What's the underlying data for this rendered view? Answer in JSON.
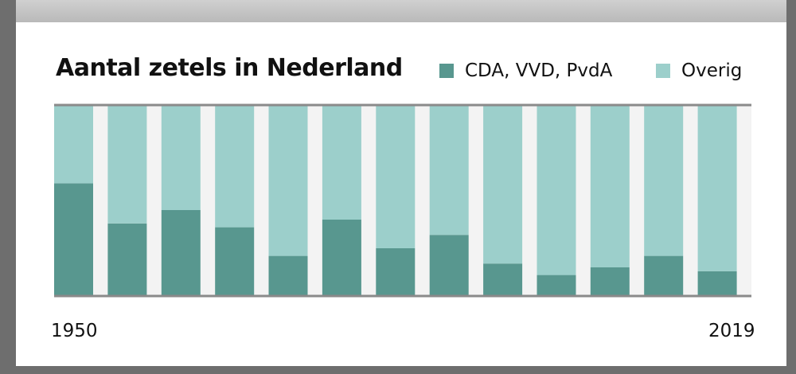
{
  "chart_data": {
    "type": "bar",
    "stacked": true,
    "normalized": true,
    "title": "Aantal zetels in Nederland",
    "x_start_label": "1950",
    "x_end_label": "2019",
    "series": [
      {
        "name": "CDA, VVD, PvdA",
        "color": "#58978f",
        "values": [
          0.59,
          0.38,
          0.45,
          0.36,
          0.21,
          0.4,
          0.25,
          0.32,
          0.17,
          0.11,
          0.15,
          0.21,
          0.13
        ]
      },
      {
        "name": "Overig",
        "color": "#9ccfcb",
        "values": [
          0.41,
          0.62,
          0.55,
          0.64,
          0.79,
          0.6,
          0.75,
          0.68,
          0.83,
          0.89,
          0.85,
          0.79,
          0.87
        ]
      }
    ],
    "ylim": [
      0,
      1
    ],
    "grid": false,
    "legend_position": "top-right"
  }
}
